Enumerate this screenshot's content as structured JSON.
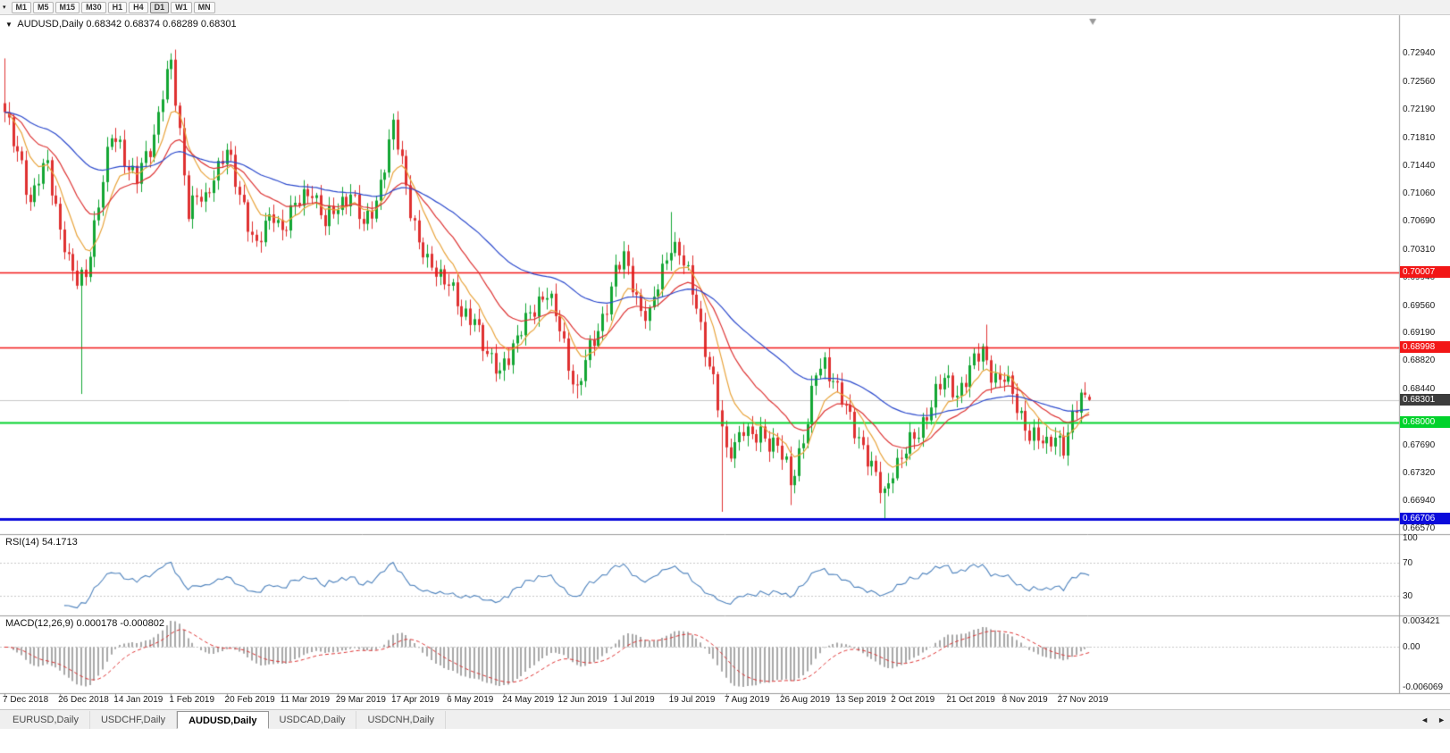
{
  "toolbar": {
    "menu_icon": "▾",
    "timeframes": [
      "M1",
      "M5",
      "M15",
      "M30",
      "H1",
      "H4",
      "D1",
      "W1",
      "MN"
    ],
    "active": "D1"
  },
  "chart_header": {
    "collapse_icon": "▼",
    "symbol": "AUDUSD,Daily",
    "ohlc": "0.68342 0.68374 0.68289 0.68301"
  },
  "price_axis": {
    "ticks": [
      "0.72940",
      "0.72560",
      "0.72190",
      "0.71810",
      "0.71440",
      "0.71060",
      "0.70690",
      "0.70310",
      "0.69940",
      "0.69560",
      "0.69190",
      "0.68820",
      "0.68440",
      "0.67690",
      "0.67320",
      "0.66940",
      "0.66570"
    ],
    "tags": [
      {
        "label": "0.70007",
        "price": 0.70007,
        "color": "#f21616",
        "type": "resistance-1"
      },
      {
        "label": "0.68998",
        "price": 0.68998,
        "color": "#f21616",
        "type": "resistance-2"
      },
      {
        "label": "0.68301",
        "price": 0.68301,
        "color": "#3c3c3c",
        "type": "current-price"
      },
      {
        "label": "0.68000",
        "price": 0.68,
        "color": "#00d22b",
        "type": "support-1"
      },
      {
        "label": "0.66706",
        "price": 0.66706,
        "color": "#0b0bdb",
        "type": "support-2"
      }
    ]
  },
  "tabs": {
    "items": [
      {
        "label": "EURUSD,Daily",
        "active": false
      },
      {
        "label": "USDCHF,Daily",
        "active": false
      },
      {
        "label": "AUDUSD,Daily",
        "active": true
      },
      {
        "label": "USDCAD,Daily",
        "active": false
      },
      {
        "label": "USDCNH,Daily",
        "active": false
      }
    ],
    "scroll_left": "◄",
    "scroll_right": "►"
  },
  "chart_data": {
    "type": "candlestick",
    "symbol": "AUDUSD",
    "timeframe": "Daily",
    "last_candle": {
      "open": 0.68342,
      "high": 0.68374,
      "low": 0.68289,
      "close": 0.68301
    },
    "current_price": 0.68301,
    "axis": {
      "price_max": 0.7346,
      "price_min": 0.665
    },
    "candle_count": 255,
    "bars_per_label": 13,
    "x_labels": [
      "7 Dec 2018",
      "26 Dec 2018",
      "14 Jan 2019",
      "1 Feb 2019",
      "20 Feb 2019",
      "11 Mar 2019",
      "29 Mar 2019",
      "17 Apr 2019",
      "6 May 2019",
      "24 May 2019",
      "12 Jun 2019",
      "1 Jul 2019",
      "19 Jul 2019",
      "7 Aug 2019",
      "26 Aug 2019",
      "13 Sep 2019",
      "2 Oct 2019",
      "21 Oct 2019",
      "8 Nov 2019",
      "27 Nov 2019"
    ],
    "anchors": [
      [
        0,
        0.721
      ],
      [
        2,
        0.718
      ],
      [
        4,
        0.715
      ],
      [
        6,
        0.709
      ],
      [
        8,
        0.7125
      ],
      [
        10,
        0.715
      ],
      [
        13,
        0.706
      ],
      [
        15,
        0.701
      ],
      [
        17,
        0.699
      ],
      [
        19,
        0.7005
      ],
      [
        21,
        0.706
      ],
      [
        23,
        0.712
      ],
      [
        25,
        0.719
      ],
      [
        27,
        0.7175
      ],
      [
        29,
        0.7135
      ],
      [
        31,
        0.7125
      ],
      [
        33,
        0.716
      ],
      [
        35,
        0.7185
      ],
      [
        37,
        0.724
      ],
      [
        39,
        0.728
      ],
      [
        41,
        0.719
      ],
      [
        43,
        0.7085
      ],
      [
        45,
        0.71
      ],
      [
        47,
        0.7095
      ],
      [
        49,
        0.7135
      ],
      [
        52,
        0.7165
      ],
      [
        54,
        0.712
      ],
      [
        56,
        0.709
      ],
      [
        59,
        0.7035
      ],
      [
        61,
        0.706
      ],
      [
        63,
        0.708
      ],
      [
        65,
        0.706
      ],
      [
        67,
        0.708
      ],
      [
        69,
        0.7095
      ],
      [
        72,
        0.7115
      ],
      [
        75,
        0.7065
      ],
      [
        78,
        0.709
      ],
      [
        81,
        0.711
      ],
      [
        84,
        0.706
      ],
      [
        87,
        0.71
      ],
      [
        90,
        0.717
      ],
      [
        91,
        0.7195
      ],
      [
        93,
        0.715
      ],
      [
        95,
        0.709
      ],
      [
        97,
        0.704
      ],
      [
        99,
        0.701
      ],
      [
        101,
        0.7005
      ],
      [
        104,
        0.699
      ],
      [
        107,
        0.694
      ],
      [
        110,
        0.6945
      ],
      [
        113,
        0.6885
      ],
      [
        116,
        0.6867
      ],
      [
        117,
        0.6885
      ],
      [
        120,
        0.691
      ],
      [
        123,
        0.6945
      ],
      [
        125,
        0.6965
      ],
      [
        127,
        0.6975
      ],
      [
        129,
        0.694
      ],
      [
        130,
        0.6925
      ],
      [
        132,
        0.688
      ],
      [
        134,
        0.6842
      ],
      [
        136,
        0.688
      ],
      [
        139,
        0.6925
      ],
      [
        141,
        0.696
      ],
      [
        143,
        0.7
      ],
      [
        145,
        0.702
      ],
      [
        147,
        0.699
      ],
      [
        149,
        0.695
      ],
      [
        151,
        0.694
      ],
      [
        153,
        0.6985
      ],
      [
        155,
        0.7025
      ],
      [
        156,
        0.704
      ],
      [
        158,
        0.7025
      ],
      [
        160,
        0.6995
      ],
      [
        162,
        0.696
      ],
      [
        164,
        0.69
      ],
      [
        166,
        0.685
      ],
      [
        168,
        0.679
      ],
      [
        169,
        0.676
      ],
      [
        171,
        0.6775
      ],
      [
        173,
        0.679
      ],
      [
        175,
        0.6775
      ],
      [
        177,
        0.679
      ],
      [
        179,
        0.6775
      ],
      [
        181,
        0.6765
      ],
      [
        183,
        0.674
      ],
      [
        184,
        0.672
      ],
      [
        186,
        0.676
      ],
      [
        188,
        0.68
      ],
      [
        190,
        0.6865
      ],
      [
        192,
        0.688
      ],
      [
        194,
        0.686
      ],
      [
        195,
        0.6845
      ],
      [
        197,
        0.6815
      ],
      [
        199,
        0.679
      ],
      [
        201,
        0.677
      ],
      [
        203,
        0.674
      ],
      [
        205,
        0.671
      ],
      [
        206,
        0.67
      ],
      [
        208,
        0.674
      ],
      [
        210,
        0.6755
      ],
      [
        212,
        0.677
      ],
      [
        214,
        0.6785
      ],
      [
        216,
        0.6815
      ],
      [
        218,
        0.684
      ],
      [
        220,
        0.6855
      ],
      [
        221,
        0.685
      ],
      [
        223,
        0.684
      ],
      [
        225,
        0.686
      ],
      [
        227,
        0.688
      ],
      [
        229,
        0.6895
      ],
      [
        231,
        0.687
      ],
      [
        233,
        0.6855
      ],
      [
        234,
        0.686
      ],
      [
        236,
        0.6835
      ],
      [
        238,
        0.681
      ],
      [
        240,
        0.6785
      ],
      [
        242,
        0.6775
      ],
      [
        244,
        0.6768
      ],
      [
        246,
        0.6788
      ],
      [
        248,
        0.6765
      ],
      [
        250,
        0.68
      ],
      [
        252,
        0.6838
      ],
      [
        254,
        0.683
      ]
    ],
    "spikes": [
      {
        "i": 0,
        "high": 0.7288
      },
      {
        "i": 18,
        "low": 0.6838
      },
      {
        "i": 39,
        "high": 0.7294
      },
      {
        "i": 91,
        "high": 0.7213
      },
      {
        "i": 116,
        "low": 0.6862
      },
      {
        "i": 134,
        "low": 0.6832
      },
      {
        "i": 156,
        "high": 0.7082
      },
      {
        "i": 168,
        "low": 0.668
      },
      {
        "i": 184,
        "low": 0.6689
      },
      {
        "i": 206,
        "low": 0.6671
      },
      {
        "i": 230,
        "high": 0.6931
      },
      {
        "i": 247,
        "low": 0.6754
      }
    ],
    "noise": {
      "a1": 0.0011,
      "f1": 2.17,
      "a2": 0.0006,
      "f2": 0.83,
      "p2": 1.4
    },
    "colors": {
      "bull": "#12a633",
      "bear": "#df3030"
    },
    "overlays": [
      {
        "name": "ma-fast",
        "period": 9,
        "color": "#e8a33a"
      },
      {
        "name": "ma-medium",
        "period": 21,
        "color": "#dd3333"
      },
      {
        "name": "ma-slow",
        "period": 55,
        "color": "#2b49cc"
      }
    ],
    "hlines": [
      {
        "price": 0.70007,
        "color": "#f21616",
        "width": 1.5
      },
      {
        "price": 0.68998,
        "color": "#f21616",
        "width": 1.5
      },
      {
        "price": 0.68,
        "color": "#00d22b",
        "width": 2
      },
      {
        "price": 0.66706,
        "color": "#0b0bdb",
        "width": 3
      }
    ],
    "bid_line": {
      "price": 0.68301,
      "color": "#c8c8c8"
    },
    "indicators": {
      "rsi": {
        "label": "RSI(14)",
        "value_display": "54.1713",
        "period": 14,
        "color": "#4f83bd",
        "levels": [
          "100",
          "70",
          "30"
        ],
        "level_values": [
          100,
          70,
          30
        ],
        "level_lines": [
          70,
          30
        ]
      },
      "macd": {
        "label": "MACD(12,26,9)",
        "values_display": "0.000178 -0.000802",
        "fast": 12,
        "slow": 26,
        "signal_period": 9,
        "axis_labels": [
          "0.003421",
          "0.00",
          "-0.006069"
        ],
        "histogram_color": "#a8a8a8",
        "signal_color": "#dd3333"
      }
    }
  }
}
